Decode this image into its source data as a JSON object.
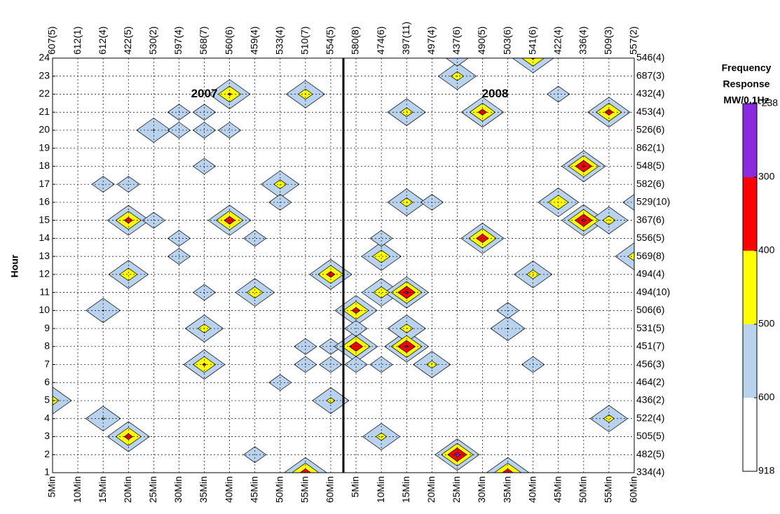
{
  "chart_data": {
    "type": "contour",
    "y_label": "Hour",
    "annotations": [
      {
        "text": "2007",
        "x": 6,
        "y": 22
      },
      {
        "text": "2008",
        "x": 17.5,
        "y": 22
      }
    ],
    "categories": [
      "5Min",
      "10Min",
      "15Min",
      "20Min",
      "25Min",
      "30Min",
      "35Min",
      "40Min",
      "45Min",
      "50Min",
      "55Min",
      "60Min",
      "5Min",
      "10Min",
      "15Min",
      "20Min",
      "25Min",
      "30Min",
      "35Min",
      "40Min",
      "45Min",
      "50Min",
      "55Min",
      "60Min"
    ],
    "top_labels": [
      "607(5)",
      "612(1)",
      "612(4)",
      "422(5)",
      "530(2)",
      "597(4)",
      "568(7)",
      "560(6)",
      "459(4)",
      "533(4)",
      "510(7)",
      "554(5)",
      "580(8)",
      "474(6)",
      "397(11)",
      "497(4)",
      "437(6)",
      "490(5)",
      "503(6)",
      "541(6)",
      "422(4)",
      "336(4)",
      "509(3)",
      "557(2)"
    ],
    "right_labels": [
      "334(4)",
      "482(5)",
      "505(5)",
      "522(4)",
      "436(2)",
      "464(2)",
      "456(3)",
      "451(7)",
      "531(5)",
      "506(6)",
      "494(10)",
      "494(4)",
      "569(8)",
      "556(5)",
      "367(6)",
      "529(10)",
      "582(6)",
      "548(5)",
      "862(1)",
      "526(6)",
      "453(4)",
      "432(4)",
      "687(3)",
      "546(4)"
    ],
    "ylim": [
      1,
      24
    ],
    "yticks": [
      1,
      2,
      3,
      4,
      5,
      6,
      7,
      8,
      9,
      10,
      11,
      12,
      13,
      14,
      15,
      16,
      17,
      18,
      19,
      20,
      21,
      22,
      23,
      24
    ],
    "divider": 11.5,
    "grid": true,
    "colorbar_title": [
      "Frequency",
      "Response",
      "MW/0.1Hz"
    ],
    "levels": [
      238,
      300,
      400,
      500,
      600,
      918
    ],
    "level_labels": [
      {
        "value": 238,
        "label": "-238"
      },
      300,
      400,
      500,
      600,
      918
    ],
    "level_colors": [
      "#8a2be2",
      "#ff0000",
      "#ffff00",
      "#b9d3ee",
      "#ffffff"
    ],
    "points": [
      {
        "x": 0,
        "y": 5,
        "value": 450
      },
      {
        "x": 2,
        "y": 4,
        "value": 490
      },
      {
        "x": 2,
        "y": 10,
        "value": 495
      },
      {
        "x": 2,
        "y": 17,
        "value": 560
      },
      {
        "x": 3,
        "y": 17,
        "value": 560
      },
      {
        "x": 3,
        "y": 3,
        "value": 350
      },
      {
        "x": 3,
        "y": 12,
        "value": 420
      },
      {
        "x": 3,
        "y": 15,
        "value": 350
      },
      {
        "x": 4,
        "y": 15,
        "value": 560
      },
      {
        "x": 5,
        "y": 14,
        "value": 560
      },
      {
        "x": 5,
        "y": 13,
        "value": 560
      },
      {
        "x": 4,
        "y": 20,
        "value": 495
      },
      {
        "x": 5,
        "y": 20,
        "value": 560
      },
      {
        "x": 6,
        "y": 20,
        "value": 560
      },
      {
        "x": 7,
        "y": 20,
        "value": 560
      },
      {
        "x": 5,
        "y": 21,
        "value": 560
      },
      {
        "x": 6,
        "y": 21,
        "value": 560
      },
      {
        "x": 6,
        "y": 18,
        "value": 560
      },
      {
        "x": 6,
        "y": 11,
        "value": 560
      },
      {
        "x": 6,
        "y": 9,
        "value": 450
      },
      {
        "x": 6,
        "y": 7,
        "value": 380
      },
      {
        "x": 7,
        "y": 22,
        "value": 380
      },
      {
        "x": 7,
        "y": 15,
        "value": 330
      },
      {
        "x": 8,
        "y": 14,
        "value": 560
      },
      {
        "x": 8,
        "y": 2,
        "value": 560
      },
      {
        "x": 8,
        "y": 11,
        "value": 430
      },
      {
        "x": 9,
        "y": 6,
        "value": 560
      },
      {
        "x": 9,
        "y": 17,
        "value": 450
      },
      {
        "x": 9,
        "y": 16,
        "value": 560
      },
      {
        "x": 10,
        "y": 1,
        "value": 330
      },
      {
        "x": 10,
        "y": 22,
        "value": 440
      },
      {
        "x": 11,
        "y": 5,
        "value": 470
      },
      {
        "x": 11,
        "y": 12,
        "value": 350
      },
      {
        "x": 11,
        "y": 8,
        "value": 560
      },
      {
        "x": 11,
        "y": 7,
        "value": 560
      },
      {
        "x": 10,
        "y": 8,
        "value": 560
      },
      {
        "x": 10,
        "y": 7,
        "value": 560
      },
      {
        "x": 12,
        "y": 8,
        "value": 310
      },
      {
        "x": 12,
        "y": 10,
        "value": 350
      },
      {
        "x": 12,
        "y": 9,
        "value": 560
      },
      {
        "x": 12,
        "y": 7,
        "value": 560
      },
      {
        "x": 13,
        "y": 7,
        "value": 560
      },
      {
        "x": 13,
        "y": 11,
        "value": 430
      },
      {
        "x": 13,
        "y": 13,
        "value": 420
      },
      {
        "x": 13,
        "y": 14,
        "value": 560
      },
      {
        "x": 14,
        "y": 11,
        "value": 270
      },
      {
        "x": 14,
        "y": 8,
        "value": 270
      },
      {
        "x": 14,
        "y": 9,
        "value": 450
      },
      {
        "x": 14,
        "y": 16,
        "value": 450
      },
      {
        "x": 13,
        "y": 3,
        "value": 460
      },
      {
        "x": 14,
        "y": 21,
        "value": 450
      },
      {
        "x": 15,
        "y": 16,
        "value": 560
      },
      {
        "x": 15,
        "y": 7,
        "value": 460
      },
      {
        "x": 16,
        "y": 2,
        "value": 250
      },
      {
        "x": 16,
        "y": 23,
        "value": 450
      },
      {
        "x": 16,
        "y": 24,
        "value": 560
      },
      {
        "x": 17,
        "y": 21,
        "value": 350
      },
      {
        "x": 17,
        "y": 14,
        "value": 320
      },
      {
        "x": 18,
        "y": 1,
        "value": 330
      },
      {
        "x": 18,
        "y": 9,
        "value": 495
      },
      {
        "x": 18,
        "y": 10,
        "value": 560
      },
      {
        "x": 19,
        "y": 24,
        "value": 380
      },
      {
        "x": 19,
        "y": 12,
        "value": 450
      },
      {
        "x": 19,
        "y": 7,
        "value": 560
      },
      {
        "x": 20,
        "y": 22,
        "value": 560
      },
      {
        "x": 20,
        "y": 16,
        "value": 400
      },
      {
        "x": 21,
        "y": 15,
        "value": 270
      },
      {
        "x": 21,
        "y": 18,
        "value": 280
      },
      {
        "x": 22,
        "y": 15,
        "value": 450
      },
      {
        "x": 22,
        "y": 4,
        "value": 460
      },
      {
        "x": 22,
        "y": 21,
        "value": 350
      },
      {
        "x": 23,
        "y": 13,
        "value": 450
      },
      {
        "x": 23,
        "y": 16,
        "value": 560
      }
    ]
  }
}
